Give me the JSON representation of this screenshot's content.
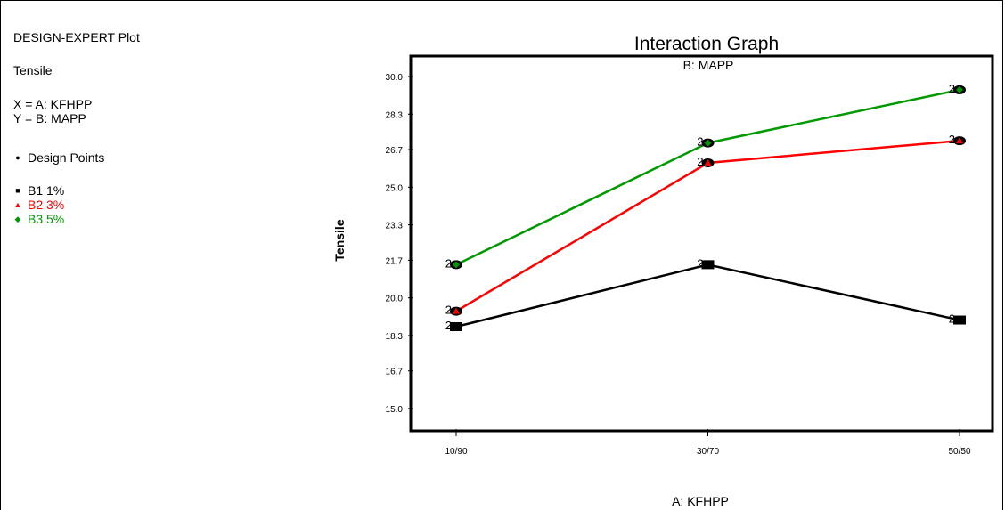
{
  "info_panel": {
    "plot_label": "DESIGN-EXPERT Plot",
    "response": "Tensile",
    "x_def": "X = A: KFHPP",
    "y_def": "Y = B: MAPP",
    "design_points_label": "Design Points",
    "legend": [
      {
        "label": "B1 1%",
        "color": "#000000",
        "marker": "square"
      },
      {
        "label": "B2 3%",
        "color": "#ff0000",
        "marker": "triangle"
      },
      {
        "label": "B3 5%",
        "color": "#009900",
        "marker": "diamond"
      }
    ]
  },
  "chart_data": {
    "type": "line",
    "title": "Interaction Graph",
    "subtitle": "B: MAPP",
    "xlabel": "A: KFHPP",
    "ylabel": "Tensile",
    "categories": [
      "10/90",
      "30/70",
      "50/50"
    ],
    "ylim": [
      15.0,
      30.0
    ],
    "yticks": [
      "15.0",
      "16.7",
      "18.3",
      "20.0",
      "21.7",
      "23.3",
      "25.0",
      "26.7",
      "28.3",
      "30.0"
    ],
    "grid": false,
    "point_annotation": "2",
    "series": [
      {
        "name": "B1 1%",
        "color": "#000000",
        "marker": "square",
        "values": [
          18.7,
          21.5,
          19.0
        ]
      },
      {
        "name": "B2 3%",
        "color": "#ff0000",
        "marker": "triangle",
        "values": [
          19.4,
          26.1,
          27.1
        ]
      },
      {
        "name": "B3 5%",
        "color": "#009900",
        "marker": "diamond",
        "values": [
          21.5,
          27.0,
          29.4
        ]
      }
    ]
  }
}
